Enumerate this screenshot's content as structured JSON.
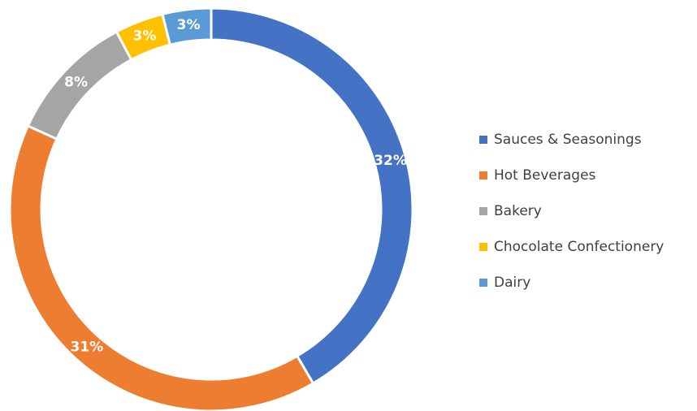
{
  "chart_data": {
    "type": "pie",
    "variant": "doughnut",
    "title": "",
    "categories": [
      "Sauces & Seasonings",
      "Hot Beverages",
      "Bakery",
      "Chocolate Confectionery",
      "Dairy"
    ],
    "values": [
      32,
      31,
      8,
      3,
      3
    ],
    "labels": [
      "32%",
      "31%",
      "8%",
      "3%",
      "3%"
    ],
    "colors": [
      "#4472C4",
      "#ED7D31",
      "#A5A5A5",
      "#FFC000",
      "#5B9BD5"
    ],
    "legend_position": "right"
  }
}
